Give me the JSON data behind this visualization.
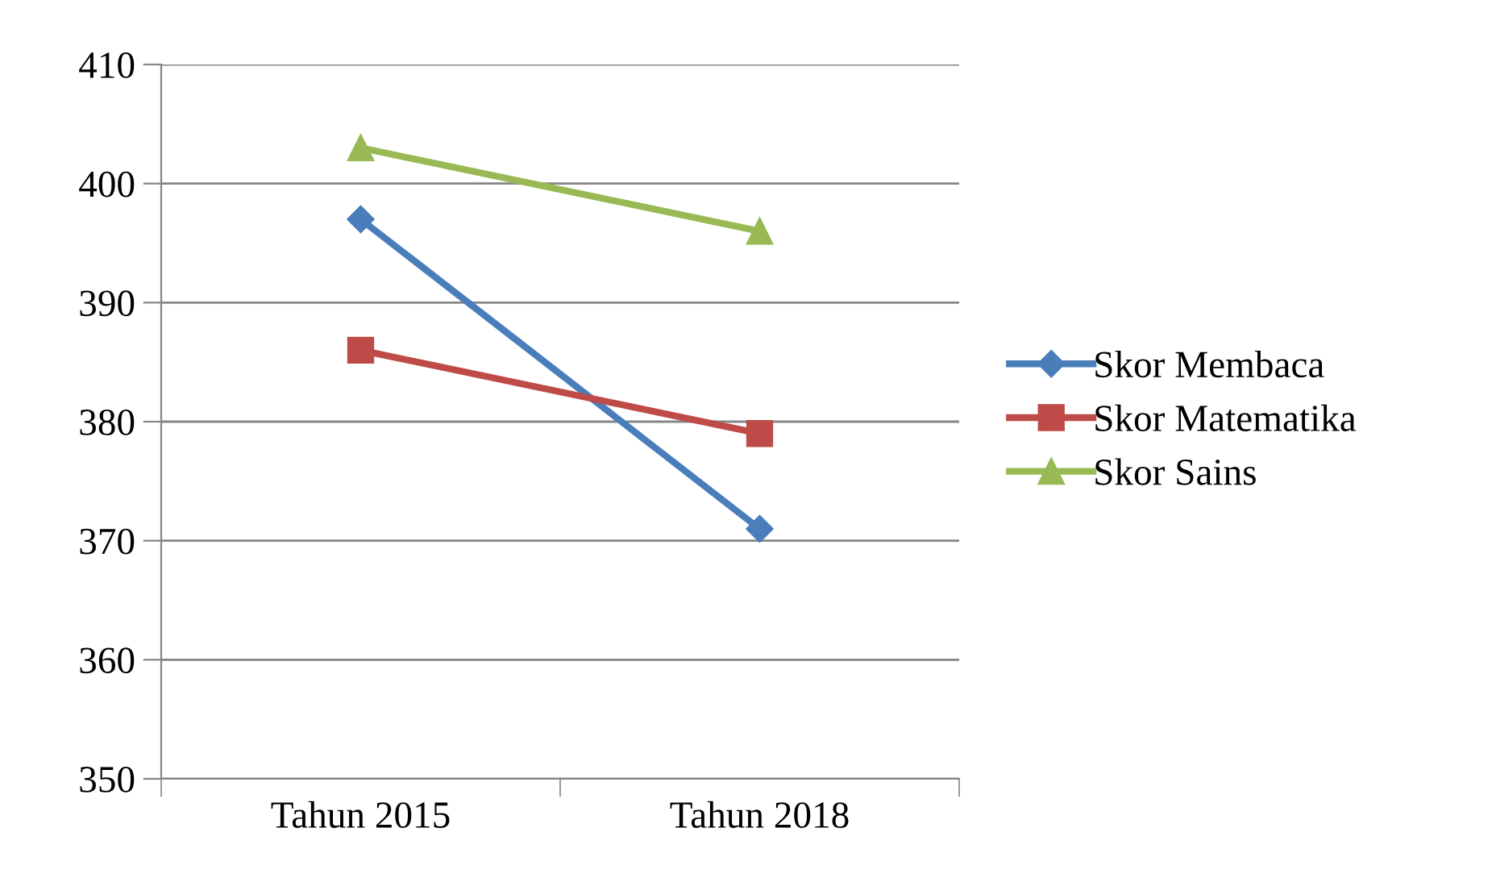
{
  "chart_data": {
    "type": "line",
    "categories": [
      "Tahun 2015",
      "Tahun 2018"
    ],
    "series": [
      {
        "name": "Skor Membaca",
        "color": "#4a7ebb",
        "values": [
          397,
          371
        ],
        "marker": "diamond"
      },
      {
        "name": "Skor Matematika",
        "color": "#be4b48",
        "values": [
          386,
          379
        ],
        "marker": "square"
      },
      {
        "name": "Skor Sains",
        "color": "#98b954",
        "values": [
          403,
          396
        ],
        "marker": "triangle"
      }
    ],
    "ylim": [
      350,
      410
    ],
    "yticks": [
      350,
      360,
      370,
      380,
      390,
      400,
      410
    ],
    "grid": "y",
    "legend": "right",
    "line_style": "solid"
  }
}
